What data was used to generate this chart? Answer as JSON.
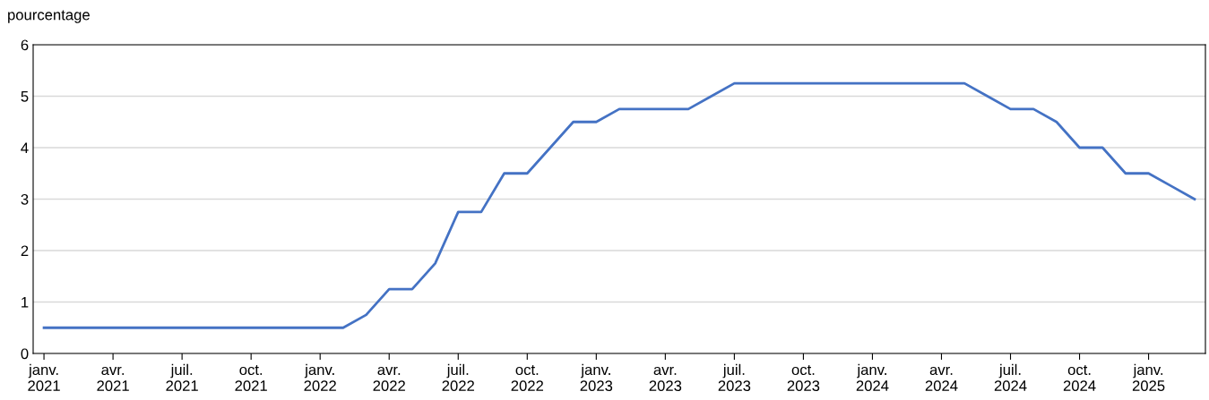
{
  "chart_data": {
    "type": "line",
    "ylabel": "pourcentage",
    "categories": [
      "janv.\n2021",
      null,
      null,
      "avr.\n2021",
      null,
      null,
      "juil.\n2021",
      null,
      null,
      "oct.\n2021",
      null,
      null,
      "janv.\n2022",
      null,
      null,
      "avr.\n2022",
      null,
      null,
      "juil.\n2022",
      null,
      null,
      "oct.\n2022",
      null,
      null,
      "janv.\n2023",
      null,
      null,
      "avr.\n2023",
      null,
      null,
      "juil.\n2023",
      null,
      null,
      "oct.\n2023",
      null,
      null,
      "janv.\n2024",
      null,
      null,
      "avr.\n2024",
      null,
      null,
      "juil.\n2024",
      null,
      null,
      "oct.\n2024",
      null,
      null,
      "janv.\n2025",
      null,
      null
    ],
    "series": [
      {
        "color": "#4472c4",
        "values": [
          0.5,
          0.5,
          0.5,
          0.5,
          0.5,
          0.5,
          0.5,
          0.5,
          0.5,
          0.5,
          0.5,
          0.5,
          0.5,
          0.5,
          0.75,
          1.25,
          1.25,
          1.75,
          2.75,
          2.75,
          3.5,
          3.5,
          4.0,
          4.5,
          4.5,
          4.75,
          4.75,
          4.75,
          4.75,
          5.0,
          5.25,
          5.25,
          5.25,
          5.25,
          5.25,
          5.25,
          5.25,
          5.25,
          5.25,
          5.25,
          5.25,
          5.0,
          4.75,
          4.75,
          4.5,
          4.0,
          4.0,
          3.5,
          3.5,
          3.25,
          3.0
        ]
      }
    ],
    "ylim": [
      0,
      6
    ],
    "yticks": [
      0,
      1,
      2,
      3,
      4,
      5,
      6
    ],
    "grid": "y",
    "marker": "none",
    "line_style": "solid"
  }
}
